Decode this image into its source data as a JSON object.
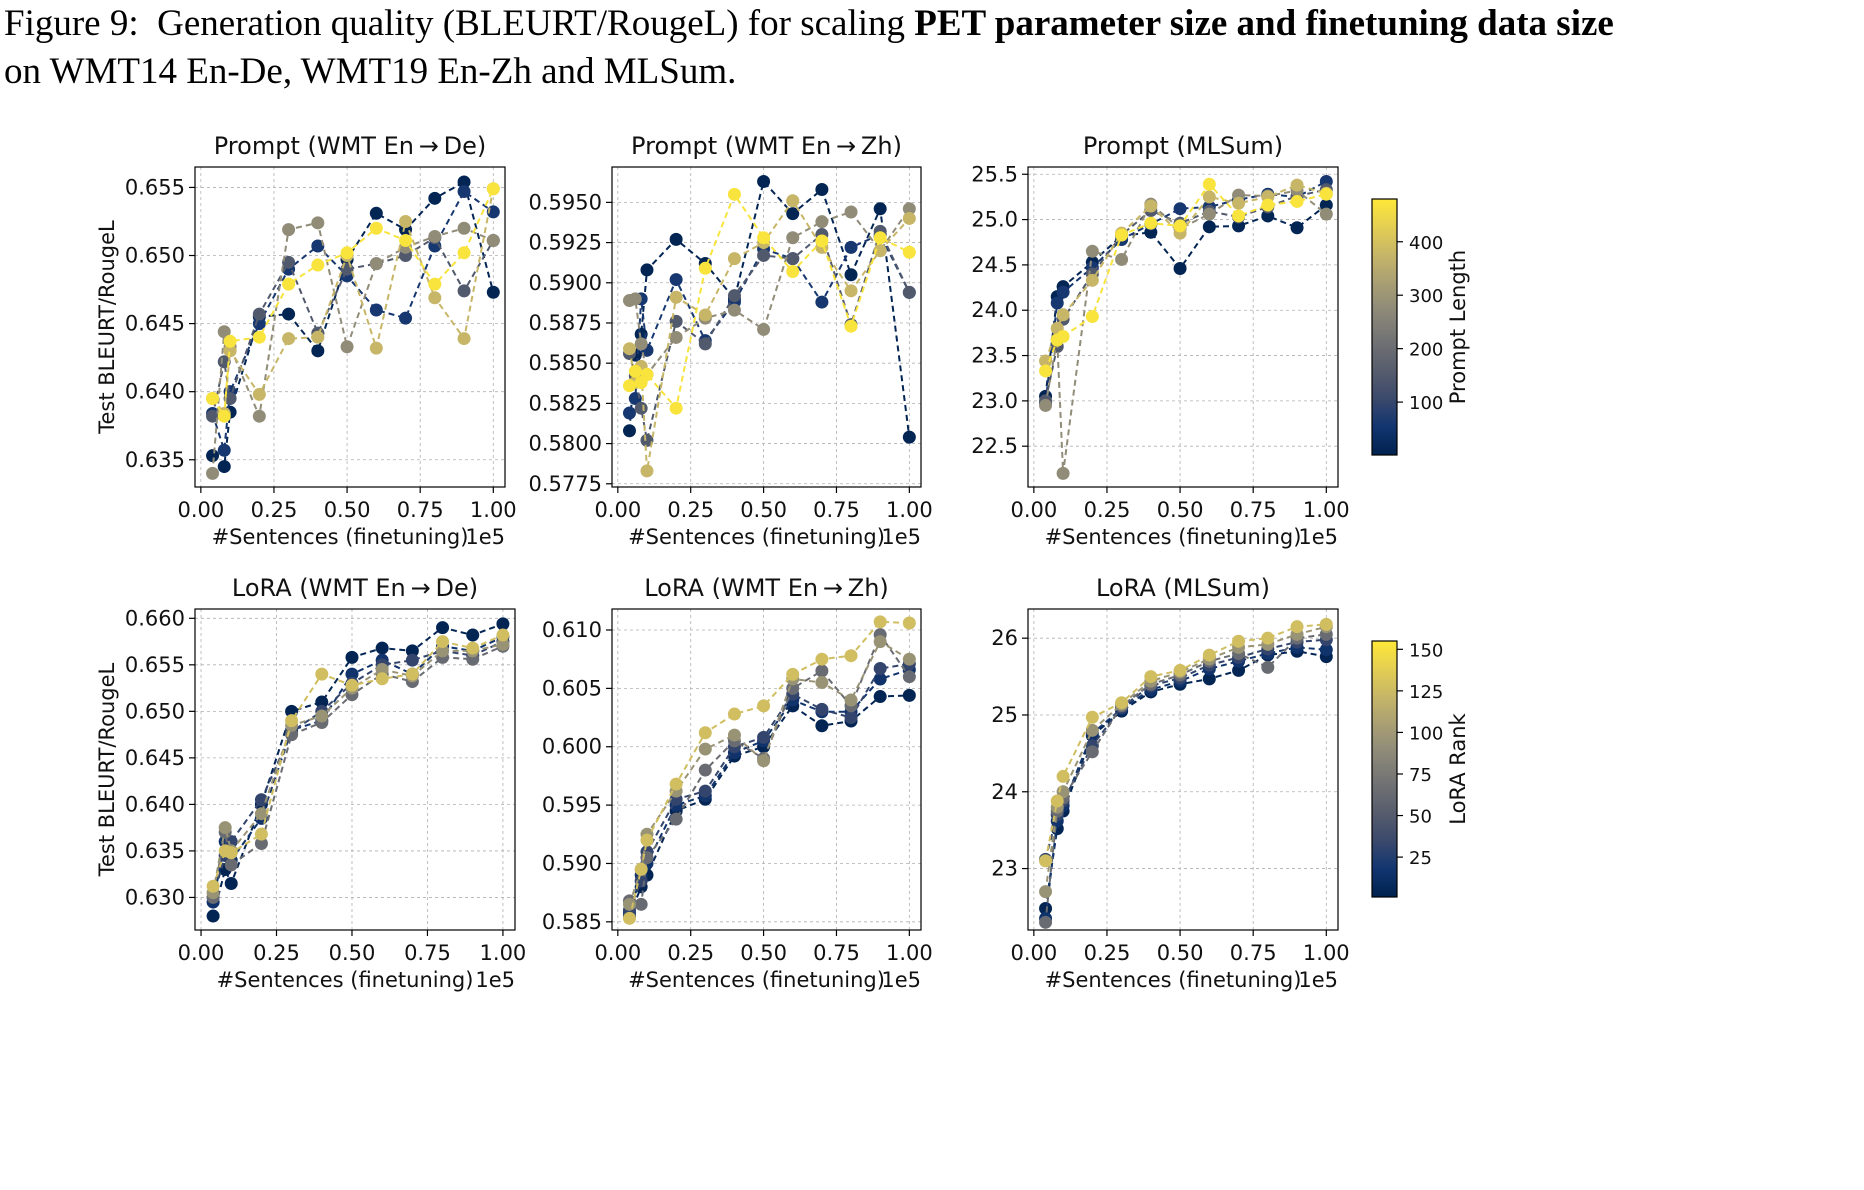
{
  "caption": {
    "label": "Figure 9:",
    "text_plain": "Generation quality (BLEURT/RougeL) for scaling",
    "text_bold": "PET parameter size and finetuning data size",
    "text_end": "on WMT14 En-De, WMT19 En-Zh and MLSum."
  },
  "colorbars": [
    {
      "label": "Prompt Length",
      "ticks": [
        100,
        200,
        300,
        400
      ],
      "range": [
        1,
        480
      ]
    },
    {
      "label": "LoRA Rank",
      "ticks": [
        25,
        50,
        75,
        100,
        125,
        150
      ],
      "range": [
        1,
        155
      ]
    }
  ],
  "colormap": [
    "#00224e",
    "#123570",
    "#3b496c",
    "#575d6d",
    "#707173",
    "#8a8779",
    "#a59c74",
    "#c3b369",
    "#e1cc55",
    "#fee838"
  ],
  "chart_data": [
    {
      "type": "line",
      "title": "Prompt (WMT En → De)",
      "xlabel": "#Sentences (finetuning)",
      "ylabel": "Test BLEURT/RougeL",
      "x_offset": "1e5",
      "xlim": [
        -0.02,
        1.04
      ],
      "ylim": [
        0.633,
        0.6565
      ],
      "xticks": [
        "0.00",
        "0.25",
        "0.50",
        "0.75",
        "1.00"
      ],
      "yticks": [
        "0.635",
        "0.640",
        "0.645",
        "0.650",
        "0.655"
      ],
      "x": [
        0.04,
        0.08,
        0.1,
        0.2,
        0.3,
        0.4,
        0.5,
        0.6,
        0.7,
        0.8,
        0.9,
        1.0
      ],
      "series": [
        {
          "c": 10,
          "values": [
            0.6353,
            0.6345,
            0.6385,
            0.6455,
            0.6457,
            0.643,
            0.6497,
            0.6531,
            0.6519,
            0.6542,
            0.6554,
            0.6473
          ]
        },
        {
          "c": 60,
          "values": [
            0.6384,
            0.6357,
            0.64,
            0.645,
            0.649,
            0.6507,
            0.6485,
            0.646,
            0.6454,
            0.6507,
            0.6547,
            0.6532
          ]
        },
        {
          "c": 150,
          "values": [
            0.6382,
            0.6422,
            0.6395,
            0.6457,
            0.6495,
            0.6443,
            0.649,
            0.6494,
            0.65,
            0.6513,
            0.6474,
            0.6511
          ]
        },
        {
          "c": 280,
          "values": [
            0.634,
            0.6444,
            0.6433,
            0.6382,
            0.6519,
            0.6524,
            0.6433,
            0.6494,
            0.6506,
            0.6514,
            0.652,
            0.6511
          ]
        },
        {
          "c": 380,
          "values": [
            0.6395,
            0.6384,
            0.643,
            0.6398,
            0.6439,
            0.644,
            0.65,
            0.6432,
            0.6525,
            0.6469,
            0.6439,
            0.6549
          ]
        },
        {
          "c": 470,
          "values": [
            0.6395,
            0.6382,
            0.6437,
            0.644,
            0.6479,
            0.6493,
            0.6502,
            0.652,
            0.6511,
            0.6479,
            0.6502,
            0.6549
          ]
        }
      ]
    },
    {
      "type": "line",
      "title": "Prompt (WMT En → Zh)",
      "xlabel": "#Sentences (finetuning)",
      "ylabel": "",
      "x_offset": "1e5",
      "xlim": [
        -0.02,
        1.04
      ],
      "ylim": [
        0.5773,
        0.5972
      ],
      "xticks": [
        "0.00",
        "0.25",
        "0.50",
        "0.75",
        "1.00"
      ],
      "yticks": [
        "0.5775",
        "0.5800",
        "0.5825",
        "0.5850",
        "0.5875",
        "0.5900",
        "0.5925",
        "0.5950"
      ],
      "x": [
        0.04,
        0.06,
        0.08,
        0.1,
        0.2,
        0.3,
        0.4,
        0.5,
        0.6,
        0.7,
        0.8,
        0.9,
        1.0
      ],
      "series": [
        {
          "c": 10,
          "values": [
            0.5808,
            0.5855,
            0.5868,
            0.5908,
            0.5927,
            0.5912,
            0.589,
            0.5963,
            0.5943,
            0.5958,
            0.5905,
            0.5946,
            0.5804
          ]
        },
        {
          "c": 60,
          "values": [
            0.5819,
            0.5828,
            0.589,
            0.5858,
            0.5902,
            0.5864,
            0.5888,
            0.5921,
            0.5915,
            0.5888,
            0.5922,
            0.593,
            0.5894
          ]
        },
        {
          "c": 150,
          "values": [
            0.5856,
            0.5842,
            0.5822,
            0.5802,
            0.5876,
            0.5862,
            0.5892,
            0.5917,
            0.5915,
            0.593,
            0.5874,
            0.5932,
            0.5894
          ]
        },
        {
          "c": 280,
          "values": [
            0.5889,
            0.589,
            0.5862,
            0.5843,
            0.5866,
            0.5878,
            0.5883,
            0.5871,
            0.5928,
            0.5938,
            0.5944,
            0.592,
            0.5946
          ]
        },
        {
          "c": 380,
          "values": [
            0.5859,
            0.5838,
            0.5848,
            0.5783,
            0.5891,
            0.588,
            0.5915,
            0.5925,
            0.5951,
            0.5922,
            0.5895,
            0.592,
            0.594
          ]
        },
        {
          "c": 470,
          "values": [
            0.5836,
            0.5845,
            0.5838,
            0.5843,
            0.5822,
            0.5909,
            0.5955,
            0.5928,
            0.5907,
            0.5926,
            0.5873,
            0.5928,
            0.5919
          ]
        }
      ]
    },
    {
      "type": "line",
      "title": "Prompt (MLSum)",
      "xlabel": "#Sentences (finetuning)",
      "ylabel": "",
      "x_offset": "1e5",
      "xlim": [
        -0.02,
        1.04
      ],
      "ylim": [
        22.05,
        25.58
      ],
      "xticks": [
        "0.00",
        "0.25",
        "0.50",
        "0.75",
        "1.00"
      ],
      "yticks": [
        "22.5",
        "23.0",
        "23.5",
        "24.0",
        "24.5",
        "25.0",
        "25.5"
      ],
      "x": [
        0.04,
        0.08,
        0.1,
        0.2,
        0.3,
        0.4,
        0.5,
        0.6,
        0.7,
        0.8,
        0.9,
        1.0
      ],
      "series": [
        {
          "c": 10,
          "values": [
            23.05,
            24.15,
            24.26,
            24.53,
            24.82,
            24.86,
            24.46,
            24.92,
            24.93,
            25.04,
            24.91,
            25.16
          ]
        },
        {
          "c": 60,
          "values": [
            22.98,
            24.08,
            24.2,
            24.47,
            24.78,
            24.95,
            25.12,
            25.14,
            25.22,
            25.28,
            25.25,
            25.42
          ]
        },
        {
          "c": 150,
          "values": [
            23.0,
            23.6,
            23.9,
            24.4,
            24.83,
            25.1,
            24.96,
            25.09,
            25.03,
            25.14,
            25.26,
            25.33
          ]
        },
        {
          "c": 280,
          "values": [
            22.95,
            23.68,
            22.2,
            24.65,
            24.56,
            25.17,
            24.9,
            25.06,
            25.27,
            25.26,
            25.32,
            25.06
          ]
        },
        {
          "c": 380,
          "values": [
            23.44,
            23.8,
            23.95,
            24.33,
            24.85,
            25.15,
            24.85,
            25.25,
            25.18,
            25.25,
            25.38,
            25.29
          ]
        },
        {
          "c": 470,
          "values": [
            23.33,
            23.67,
            23.71,
            23.93,
            24.83,
            24.96,
            24.93,
            25.39,
            25.04,
            25.16,
            25.2,
            25.28
          ]
        }
      ]
    },
    {
      "type": "line",
      "title": "LoRA (WMT En → De)",
      "xlabel": "#Sentences (finetuning)",
      "ylabel": "Test BLEURT/RougeL",
      "x_offset": "1e5",
      "xlim": [
        -0.02,
        1.04
      ],
      "ylim": [
        0.6265,
        0.661
      ],
      "xticks": [
        "0.00",
        "0.25",
        "0.50",
        "0.75",
        "1.00"
      ],
      "yticks": [
        "0.630",
        "0.635",
        "0.640",
        "0.645",
        "0.650",
        "0.655",
        "0.660"
      ],
      "x": [
        0.04,
        0.08,
        0.1,
        0.2,
        0.3,
        0.4,
        0.5,
        0.6,
        0.7,
        0.8,
        0.9,
        1.0
      ],
      "series": [
        {
          "c": 4,
          "values": [
            0.628,
            0.633,
            0.6315,
            0.64,
            0.65,
            0.651,
            0.6558,
            0.6568,
            0.6565,
            0.659,
            0.6582,
            0.6594
          ]
        },
        {
          "c": 16,
          "values": [
            0.6295,
            0.636,
            0.634,
            0.6385,
            0.648,
            0.649,
            0.654,
            0.6555,
            0.654,
            0.657,
            0.6565,
            0.658
          ]
        },
        {
          "c": 32,
          "values": [
            0.63,
            0.6345,
            0.636,
            0.6405,
            0.6478,
            0.65,
            0.653,
            0.655,
            0.6555,
            0.6565,
            0.656,
            0.6575
          ]
        },
        {
          "c": 64,
          "values": [
            0.63,
            0.637,
            0.6335,
            0.6358,
            0.6475,
            0.6488,
            0.6518,
            0.654,
            0.6532,
            0.6558,
            0.6556,
            0.657
          ]
        },
        {
          "c": 96,
          "values": [
            0.6305,
            0.6375,
            0.635,
            0.639,
            0.6485,
            0.6495,
            0.6525,
            0.6545,
            0.6538,
            0.6565,
            0.6565,
            0.6572
          ]
        },
        {
          "c": 128,
          "values": [
            0.6312,
            0.635,
            0.6348,
            0.6368,
            0.649,
            0.654,
            0.6528,
            0.6535,
            0.654,
            0.6575,
            0.6568,
            0.6582
          ]
        }
      ]
    },
    {
      "type": "line",
      "title": "LoRA (WMT En → Zh)",
      "xlabel": "#Sentences (finetuning)",
      "ylabel": "",
      "x_offset": "1e5",
      "xlim": [
        -0.02,
        1.04
      ],
      "ylim": [
        0.5843,
        0.6118
      ],
      "xticks": [
        "0.00",
        "0.25",
        "0.50",
        "0.75",
        "1.00"
      ],
      "yticks": [
        "0.585",
        "0.590",
        "0.595",
        "0.600",
        "0.605",
        "0.610"
      ],
      "x": [
        0.04,
        0.08,
        0.1,
        0.2,
        0.3,
        0.4,
        0.5,
        0.6,
        0.7,
        0.8,
        0.9,
        1.0
      ],
      "series": [
        {
          "c": 4,
          "values": [
            0.5855,
            0.588,
            0.589,
            0.5945,
            0.5955,
            0.5992,
            0.6,
            0.6035,
            0.6018,
            0.6022,
            0.6043,
            0.6044
          ]
        },
        {
          "c": 16,
          "values": [
            0.5858,
            0.589,
            0.59,
            0.595,
            0.5958,
            0.5995,
            0.6005,
            0.604,
            0.603,
            0.603,
            0.6058,
            0.6066
          ]
        },
        {
          "c": 32,
          "values": [
            0.586,
            0.5885,
            0.591,
            0.5955,
            0.5962,
            0.6,
            0.6008,
            0.6045,
            0.6032,
            0.6025,
            0.6067,
            0.6071
          ]
        },
        {
          "c": 64,
          "values": [
            0.5868,
            0.5865,
            0.5905,
            0.5938,
            0.598,
            0.6005,
            0.599,
            0.605,
            0.6065,
            0.6035,
            0.6096,
            0.606
          ]
        },
        {
          "c": 96,
          "values": [
            0.5865,
            0.5895,
            0.5925,
            0.5962,
            0.5998,
            0.601,
            0.5988,
            0.6058,
            0.6055,
            0.604,
            0.609,
            0.6075
          ]
        },
        {
          "c": 128,
          "values": [
            0.5853,
            0.5895,
            0.592,
            0.5968,
            0.6012,
            0.6028,
            0.6035,
            0.6062,
            0.6075,
            0.6078,
            0.6107,
            0.6106
          ]
        }
      ]
    },
    {
      "type": "line",
      "title": "LoRA (MLSum)",
      "xlabel": "#Sentences (finetuning)",
      "ylabel": "",
      "x_offset": "1e5",
      "xlim": [
        -0.02,
        1.04
      ],
      "ylim": [
        22.2,
        26.38
      ],
      "xticks": [
        "0.00",
        "0.25",
        "0.50",
        "0.75",
        "1.00"
      ],
      "yticks": [
        "23",
        "24",
        "25",
        "26"
      ],
      "x": [
        0.04,
        0.08,
        0.1,
        0.2,
        0.3,
        0.4,
        0.5,
        0.6,
        0.7,
        0.8,
        0.9,
        1.0
      ],
      "series": [
        {
          "c": 4,
          "values": [
            22.48,
            23.52,
            23.75,
            24.73,
            25.05,
            25.3,
            25.4,
            25.47,
            25.58,
            25.78,
            25.83,
            25.76
          ]
        },
        {
          "c": 16,
          "values": [
            22.35,
            23.62,
            23.82,
            24.76,
            25.08,
            25.33,
            25.44,
            25.6,
            25.7,
            25.8,
            25.88,
            25.85
          ]
        },
        {
          "c": 32,
          "values": [
            23.12,
            23.7,
            23.88,
            24.6,
            25.1,
            25.38,
            25.48,
            25.65,
            25.75,
            25.86,
            25.95,
            25.98
          ]
        },
        {
          "c": 64,
          "values": [
            22.3,
            23.75,
            23.92,
            24.52,
            25.12,
            25.4,
            25.52,
            25.7,
            25.8,
            25.62,
            26.0,
            26.05
          ]
        },
        {
          "c": 96,
          "values": [
            22.7,
            23.8,
            24.0,
            24.8,
            25.14,
            25.44,
            25.56,
            25.73,
            25.88,
            25.92,
            26.05,
            26.15
          ]
        },
        {
          "c": 128,
          "values": [
            23.1,
            23.88,
            24.2,
            24.97,
            25.16,
            25.5,
            25.58,
            25.78,
            25.96,
            26.0,
            26.15,
            26.18
          ]
        }
      ]
    }
  ]
}
